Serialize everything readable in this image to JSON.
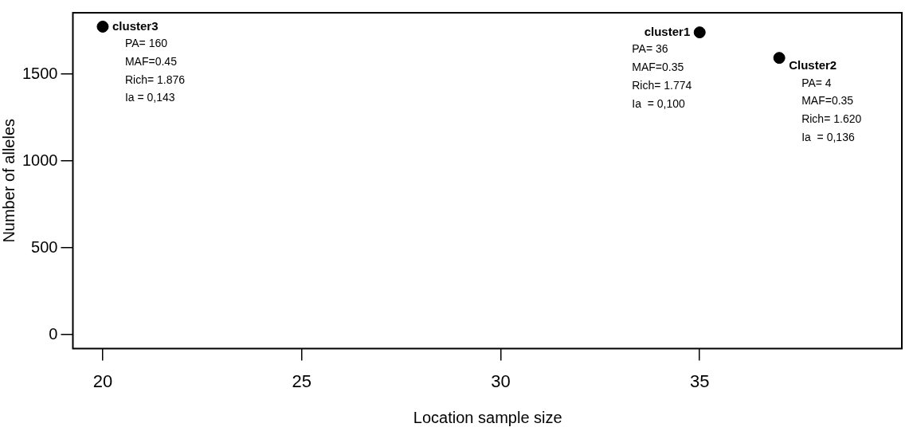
{
  "chart_data": {
    "type": "scatter",
    "xlabel": "Location sample size",
    "ylabel": "Number of alleles",
    "x": [
      20,
      35,
      37
    ],
    "values": [
      1774,
      1741,
      1594
    ],
    "color": "#000000",
    "marker": "circle",
    "grid": false,
    "legend": false,
    "xlim": [
      19.25,
      40.1
    ],
    "ylim": [
      -80,
      1854
    ],
    "xticks": [
      20,
      25,
      30,
      35
    ],
    "yticks": [
      0,
      500,
      1000,
      1500
    ],
    "annotations": [
      {
        "text": "cluster3",
        "x": 20,
        "y": 1774
      },
      {
        "text": "PA= 160\nMAF=0.45\nRich= 1.876\nIa = 0,143",
        "x": 20,
        "y": 1774
      },
      {
        "text": "cluster1",
        "x": 35,
        "y": 1741
      },
      {
        "text": "PA= 36\nMAF=0.35\nRich= 1.774\nIa  = 0,100",
        "x": 35,
        "y": 1741
      },
      {
        "text": "Cluster2",
        "x": 37,
        "y": 1594
      },
      {
        "text": "PA= 4\nMAF=0.35\nRich= 1.620\nIa  = 0,136",
        "x": 37,
        "y": 1594
      }
    ]
  }
}
